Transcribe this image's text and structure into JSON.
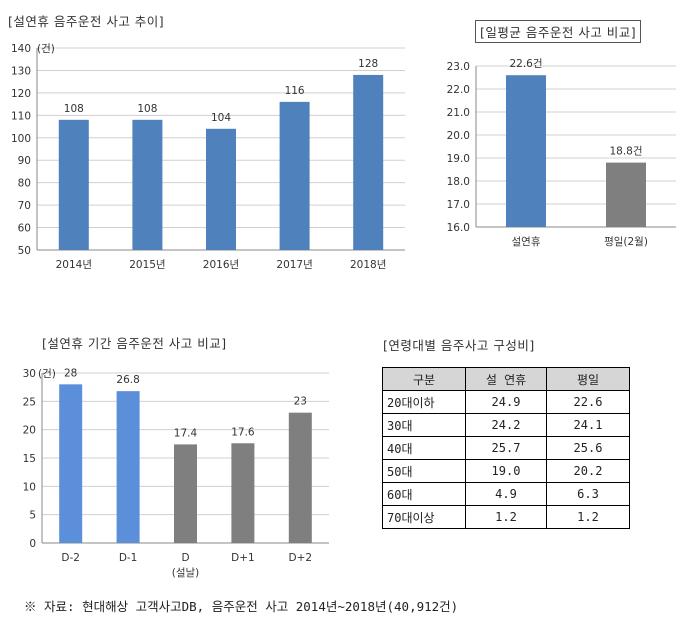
{
  "chart_data": [
    {
      "type": "bar",
      "title": "[설연휴 음주운전 사고 추이]",
      "unit": "(건)",
      "categories": [
        "2014년",
        "2015년",
        "2016년",
        "2017년",
        "2018년"
      ],
      "values": [
        108,
        108,
        104,
        116,
        128
      ],
      "ylim": [
        50,
        140
      ],
      "yticks": [
        50,
        60,
        70,
        80,
        90,
        100,
        110,
        120,
        130,
        140
      ],
      "grid": true,
      "color": "#4f81bd"
    },
    {
      "type": "bar",
      "title": "[일평균 음주운전 사고 비교]",
      "categories": [
        "설연휴",
        "평일(2월)"
      ],
      "values": [
        22.6,
        18.8
      ],
      "data_labels": [
        "22.6건",
        "18.8건"
      ],
      "ylim": [
        16.0,
        23.0
      ],
      "yticks": [
        "16.0",
        "17.0",
        "18.0",
        "19.0",
        "20.0",
        "21.0",
        "22.0",
        "23.0"
      ],
      "grid": true,
      "colors": [
        "#4f81bd",
        "#7f7f7f"
      ]
    },
    {
      "type": "bar",
      "title": "[설연휴 기간 음주운전 사고 비교]",
      "unit": "(건)",
      "categories": [
        "D-2",
        "D-1",
        "D",
        "D+1",
        "D+2"
      ],
      "category_sublabels": [
        "",
        "",
        "(설날)",
        "",
        ""
      ],
      "values": [
        28,
        26.8,
        17.4,
        17.6,
        23
      ],
      "ylim": [
        0,
        30
      ],
      "yticks": [
        0,
        5,
        10,
        15,
        20,
        25,
        30
      ],
      "grid": true,
      "colors": [
        "#5b8fd9",
        "#5b8fd9",
        "#7f7f7f",
        "#7f7f7f",
        "#7f7f7f"
      ]
    },
    {
      "type": "table",
      "title": "[연령대별 음주사고 구성비]",
      "columns": [
        "구분",
        "설 연휴",
        "평일"
      ],
      "rows": [
        [
          "20대이하",
          "24.9",
          "22.6"
        ],
        [
          "30대",
          "24.2",
          "24.1"
        ],
        [
          "40대",
          "25.7",
          "25.6"
        ],
        [
          "50대",
          "19.0",
          "20.2"
        ],
        [
          "60대",
          "4.9",
          "6.3"
        ],
        [
          "70대이상",
          "1.2",
          "1.2"
        ]
      ]
    }
  ],
  "footnote": "※ 자료: 현대해상 고객사고DB, 음주운전 사고 2014년~2018년(40,912건)"
}
